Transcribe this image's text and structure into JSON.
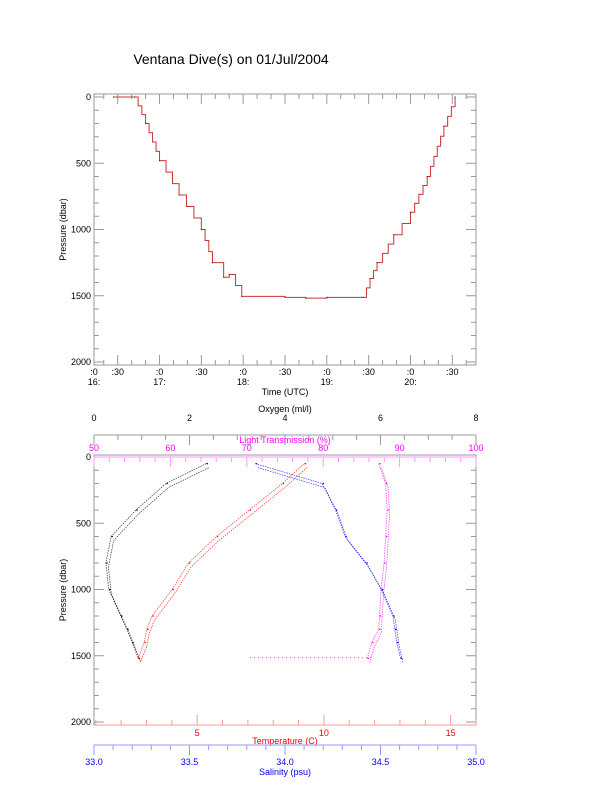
{
  "title": "Ventana Dive(s) on 01/Jul/2004",
  "chart_data": [
    {
      "type": "line",
      "xlabel": "Time (UTC)",
      "ylabel": "Pressure (dbar)",
      "xlim": [
        "16:13",
        "20:47"
      ],
      "ylim": [
        0,
        2000
      ],
      "y_inverted": true,
      "yticks": [
        "0",
        "500",
        "1000",
        "1500",
        "2000"
      ],
      "xtick_labels": [
        {
          "t": "16:13",
          "top": ":0",
          "bottom": "16:"
        },
        {
          "t": "16:30",
          "top": ":30",
          "bottom": ""
        },
        {
          "t": "17:00",
          "top": ":0",
          "bottom": "17:"
        },
        {
          "t": "17:30",
          "top": ":30",
          "bottom": ""
        },
        {
          "t": "18:00",
          "top": ":0",
          "bottom": "18:"
        },
        {
          "t": "18:30",
          "top": ":30",
          "bottom": ""
        },
        {
          "t": "19:00",
          "top": ":0",
          "bottom": "19:"
        },
        {
          "t": "19:30",
          "top": ":30",
          "bottom": ""
        },
        {
          "t": "20:00",
          "top": ":0",
          "bottom": "20:"
        },
        {
          "t": "20:30",
          "top": ":30",
          "bottom": ""
        }
      ],
      "grid": false,
      "color": "#cc3333",
      "x": [
        "16:27",
        "16:42",
        "16:50",
        "17:00",
        "17:14",
        "17:30",
        "17:38",
        "17:46",
        "17:50",
        "17:59",
        "18:30",
        "18:45",
        "19:00",
        "19:26",
        "19:31",
        "19:36",
        "19:48",
        "20:00",
        "20:12",
        "20:24",
        "20:32"
      ],
      "y": [
        0,
        0,
        200,
        480,
        740,
        1000,
        1250,
        1360,
        1340,
        1505,
        1512,
        1518,
        1512,
        1512,
        1370,
        1250,
        1040,
        870,
        600,
        220,
        0
      ]
    },
    {
      "type": "scatter",
      "ylabel": "Pressure (dbar)",
      "ylim": [
        0,
        2000
      ],
      "y_inverted": true,
      "yticks": [
        "0",
        "500",
        "1000",
        "1500",
        "2000"
      ],
      "grid": false,
      "pressure": [
        50,
        200,
        400,
        600,
        800,
        1000,
        1200,
        1300,
        1400,
        1520
      ],
      "axes": [
        {
          "key": "oxygen",
          "label": "Oxygen (ml/l)",
          "position": "top",
          "range": [
            0,
            8
          ],
          "ticks": [
            "0",
            "2",
            "4",
            "6",
            "8"
          ],
          "color": "#000000",
          "values": [
            2.37,
            1.53,
            0.9,
            0.38,
            0.27,
            0.33,
            0.58,
            0.71,
            0.82,
            0.95
          ]
        },
        {
          "key": "light",
          "label": "Light Transmission (%)",
          "position": "top-inner",
          "range": [
            50,
            100
          ],
          "ticks": [
            "50",
            "60",
            "70",
            "80",
            "90",
            "100"
          ],
          "color": "#ff00ff",
          "values": [
            87.4,
            88.3,
            88.5,
            88.3,
            88.1,
            87.7,
            87.5,
            87.4,
            86.5,
            85.9
          ]
        },
        {
          "key": "temperature",
          "label": "Temperature (C)",
          "position": "bottom",
          "range": [
            0.93,
            16
          ],
          "ticks": [
            "5",
            "10",
            "15"
          ],
          "color": "#ff0000",
          "values": [
            9.27,
            8.4,
            7.1,
            5.8,
            4.7,
            4.05,
            3.26,
            3.05,
            2.95,
            2.7
          ]
        },
        {
          "key": "salinity",
          "label": "Salinity (psu)",
          "position": "bottom-outer",
          "range": [
            33.0,
            35.0
          ],
          "ticks": [
            "33.0",
            "33.5",
            "34.0",
            "34.5",
            "35.0"
          ],
          "color": "#0000ff",
          "values": [
            33.85,
            34.2,
            34.27,
            34.32,
            34.43,
            34.51,
            34.57,
            34.58,
            34.59,
            34.61
          ]
        }
      ]
    }
  ]
}
